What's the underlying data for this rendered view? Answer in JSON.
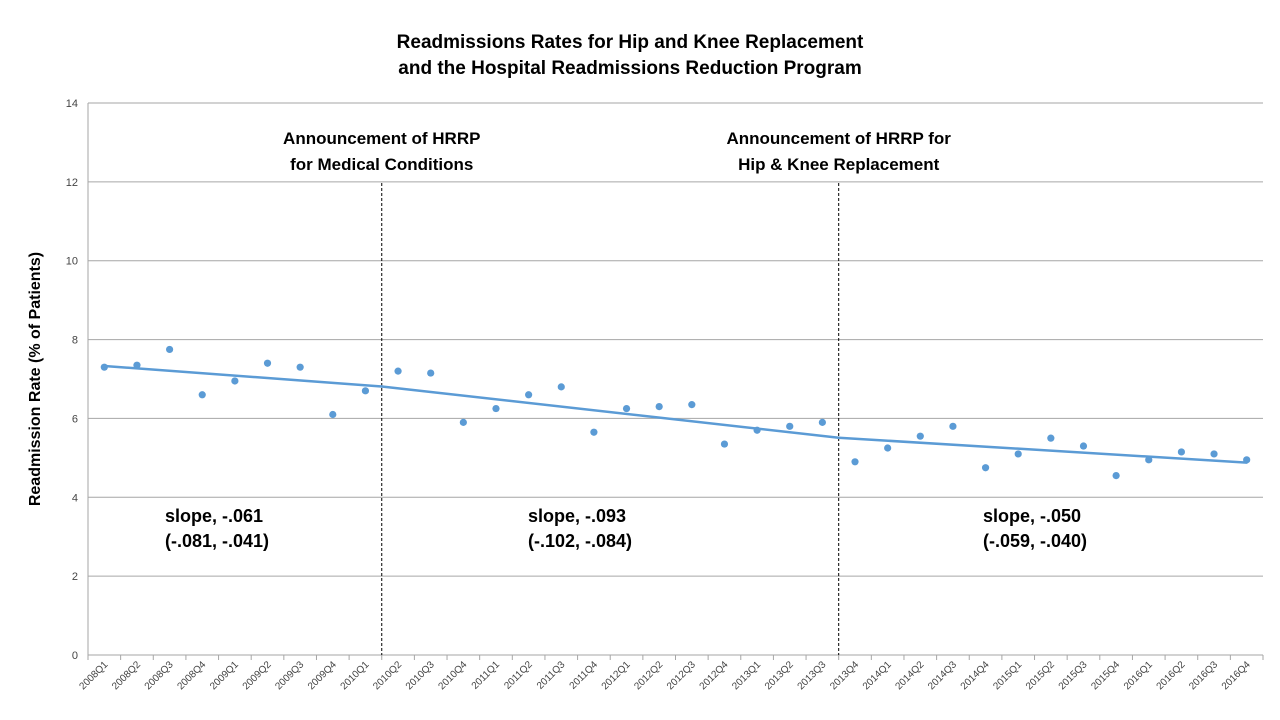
{
  "chart_data": {
    "type": "scatter",
    "title_line1": "Readmissions Rates for Hip and Knee Replacement",
    "title_line2": "and the Hospital Readmissions Reduction Program",
    "xlabel": "",
    "ylabel": "Readmission Rate (% of Patients)",
    "ylim": [
      0,
      14
    ],
    "yticks": [
      0,
      2,
      4,
      6,
      8,
      10,
      12,
      14
    ],
    "grid": true,
    "marker_color": "#5b9bd5",
    "categories": [
      "2008Q1",
      "2008Q2",
      "2008Q3",
      "2008Q4",
      "2009Q1",
      "2009Q2",
      "2009Q3",
      "2009Q4",
      "2010Q1",
      "2010Q2",
      "2010Q3",
      "2010Q4",
      "2011Q1",
      "2011Q2",
      "2011Q3",
      "2011Q4",
      "2012Q1",
      "2012Q2",
      "2012Q3",
      "2012Q4",
      "2013Q1",
      "2013Q2",
      "2013Q3",
      "2013Q4",
      "2014Q1",
      "2014Q2",
      "2014Q3",
      "2014Q4",
      "2015Q1",
      "2015Q2",
      "2015Q3",
      "2015Q4",
      "2016Q1",
      "2016Q2",
      "2016Q3",
      "2016Q4"
    ],
    "values": [
      7.3,
      7.35,
      7.75,
      6.6,
      6.95,
      7.4,
      7.3,
      6.1,
      6.7,
      7.2,
      7.15,
      5.9,
      6.25,
      6.6,
      6.8,
      5.65,
      6.25,
      6.3,
      6.35,
      5.35,
      5.7,
      5.8,
      5.9,
      4.9,
      5.25,
      5.55,
      5.8,
      4.75,
      5.1,
      5.5,
      5.3,
      4.55,
      4.95,
      5.15,
      5.1,
      4.95
    ],
    "trend_segments": [
      {
        "x_start": 0,
        "x_end": 8.5,
        "y_start": 7.33,
        "y_end": 6.81
      },
      {
        "x_start": 8.5,
        "x_end": 22.5,
        "y_start": 6.81,
        "y_end": 5.51
      },
      {
        "x_start": 22.5,
        "x_end": 35,
        "y_start": 5.51,
        "y_end": 4.88
      }
    ],
    "events": [
      {
        "x": 8.5,
        "label_line1": "Announcement  of HRRP",
        "label_line2": "for Medical Conditions"
      },
      {
        "x": 22.5,
        "label_line1": "Announcement  of HRRP for",
        "label_line2": "Hip & Knee Replacement"
      }
    ],
    "slopes": [
      {
        "line1": "slope, -.061",
        "line2": "(-.081, -.041)"
      },
      {
        "line1": "slope, -.093",
        "line2": "(-.102, -.084)"
      },
      {
        "line1": "slope, -.050",
        "line2": "(-.059, -.040)"
      }
    ]
  }
}
